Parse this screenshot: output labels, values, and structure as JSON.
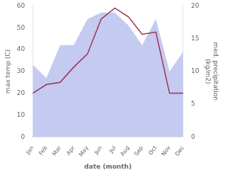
{
  "chart_data": {
    "type": "line",
    "categories": [
      "Jan",
      "Feb",
      "Mar",
      "Apr",
      "May",
      "Jun",
      "Jul",
      "Aug",
      "Sep",
      "Oct",
      "Nov",
      "Dec"
    ],
    "xlabel": "date (month)",
    "ylabel": "max temp (C)",
    "y2label": "med. precipitation\n(kg/m2)",
    "series": [
      {
        "type": "area",
        "color": "#c5caf0",
        "axis": "y2",
        "values": [
          11,
          9,
          14,
          14,
          18,
          19,
          19,
          17,
          14,
          18,
          10,
          13
        ]
      },
      {
        "type": "line",
        "color": "#993355",
        "values": [
          20,
          24,
          25,
          32,
          38,
          54,
          59,
          55,
          47,
          48,
          20,
          20
        ]
      }
    ],
    "ylim": [
      0,
      60
    ],
    "yticks": [
      0,
      10,
      20,
      30,
      40,
      50,
      60
    ],
    "y2lim": [
      0,
      20
    ],
    "y2ticks": [
      0,
      5,
      10,
      15,
      20
    ],
    "grid": false
  }
}
